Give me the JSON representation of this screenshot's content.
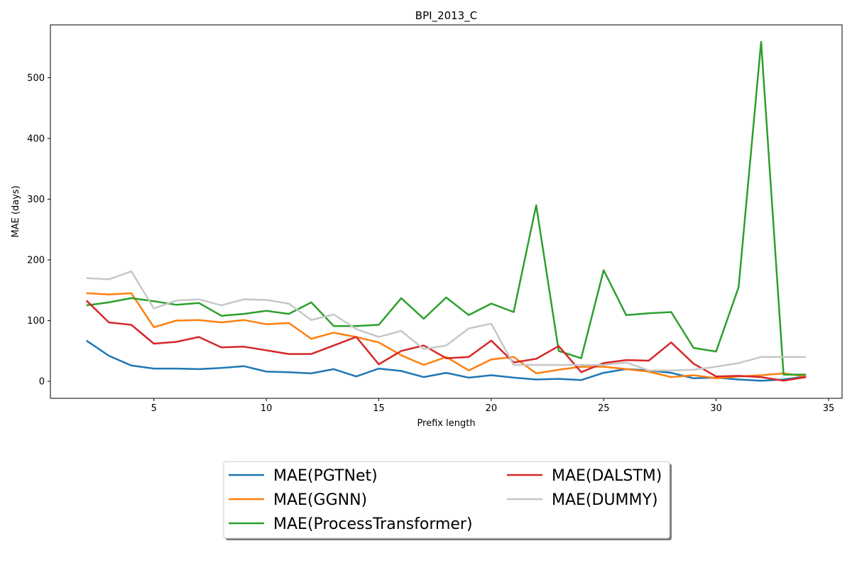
{
  "chart_data": {
    "type": "line",
    "title": "BPI_2013_C",
    "xlabel": "Prefix length",
    "ylabel": "MAE (days)",
    "xlim": [
      0.4,
      35.6
    ],
    "ylim": [
      -28,
      587
    ],
    "xticks": [
      5,
      10,
      15,
      20,
      25,
      30,
      35
    ],
    "yticks": [
      0,
      100,
      200,
      300,
      400,
      500
    ],
    "grid": false,
    "legend_position": "bottom-center, below the plot, two columns",
    "x": [
      2,
      3,
      4,
      5,
      6,
      7,
      8,
      9,
      10,
      11,
      12,
      13,
      14,
      15,
      16,
      17,
      18,
      19,
      20,
      21,
      22,
      23,
      24,
      25,
      26,
      27,
      28,
      29,
      30,
      31,
      32,
      33,
      34
    ],
    "series": [
      {
        "name": "MAE(PGTNet)",
        "color": "#1f77b4",
        "values": [
          67,
          42,
          26,
          21,
          21,
          20,
          22,
          25,
          16,
          15,
          13,
          20,
          8,
          21,
          17,
          7,
          14,
          6,
          10,
          6,
          3,
          4,
          2,
          14,
          20,
          18,
          14,
          5,
          6,
          3,
          1,
          3,
          8
        ]
      },
      {
        "name": "MAE(GGNN)",
        "color": "#ff7f0e",
        "values": [
          145,
          143,
          145,
          89,
          100,
          101,
          97,
          101,
          94,
          96,
          70,
          80,
          73,
          64,
          43,
          27,
          40,
          18,
          36,
          40,
          13,
          19,
          24,
          24,
          20,
          16,
          7,
          10,
          5,
          8,
          10,
          13,
          8
        ]
      },
      {
        "name": "MAE(ProcessTransformer)",
        "color": "#2ca02c",
        "values": [
          125,
          130,
          137,
          132,
          126,
          129,
          108,
          111,
          116,
          111,
          130,
          91,
          91,
          93,
          137,
          103,
          138,
          109,
          128,
          114,
          290,
          50,
          38,
          183,
          109,
          112,
          114,
          55,
          49,
          155,
          559,
          11,
          11
        ]
      },
      {
        "name": "MAE(DALSTM)",
        "color": "#d62728",
        "values": [
          133,
          97,
          93,
          62,
          65,
          73,
          56,
          57,
          51,
          45,
          45,
          59,
          73,
          28,
          50,
          59,
          38,
          40,
          67,
          31,
          37,
          58,
          15,
          30,
          35,
          34,
          64,
          29,
          8,
          9,
          7,
          1,
          7
        ]
      },
      {
        "name": "MAE(DUMMY)",
        "color": "#c7c7c7",
        "values": [
          170,
          168,
          181,
          120,
          133,
          135,
          125,
          135,
          134,
          128,
          101,
          110,
          86,
          73,
          83,
          53,
          59,
          87,
          95,
          27,
          27,
          27,
          27,
          27,
          31,
          18,
          18,
          19,
          24,
          30,
          40,
          40,
          40
        ]
      }
    ]
  }
}
